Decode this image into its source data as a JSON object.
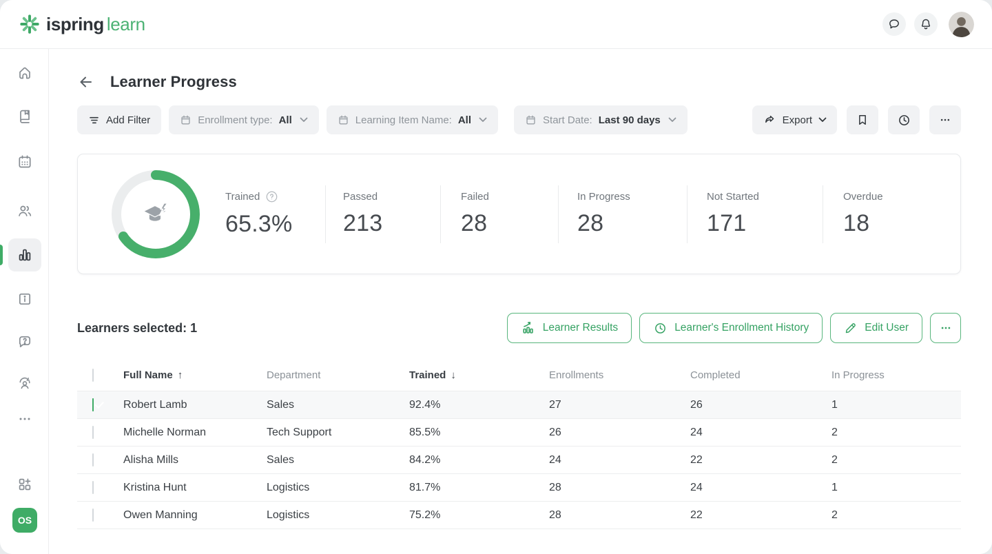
{
  "brand": {
    "name_primary": "ispring",
    "name_secondary": "learn",
    "accent": "#3fac66"
  },
  "topbar": {
    "icons": [
      "chat-icon",
      "bell-icon"
    ],
    "avatar": "user-photo"
  },
  "sidebar": {
    "items": [
      {
        "icon": "home-icon"
      },
      {
        "icon": "book-icon"
      },
      {
        "icon": "calendar-icon"
      },
      {
        "icon": "users-icon"
      },
      {
        "icon": "bar-chart-icon",
        "active": true
      },
      {
        "icon": "info-board-icon"
      },
      {
        "icon": "help-chat-icon"
      },
      {
        "icon": "support-agent-icon"
      },
      {
        "icon": "more-dots-icon"
      },
      {
        "icon": "apps-plus-icon"
      }
    ],
    "workspace_badge": "OS"
  },
  "header": {
    "title": "Learner Progress",
    "back_icon": "arrow-left-icon"
  },
  "filters": {
    "add_filter_label": "Add Filter",
    "chips": [
      {
        "label": "Enrollment type:",
        "value": "All"
      },
      {
        "label": "Learning Item Name:",
        "value": "All"
      },
      {
        "label": "Start Date:",
        "value": "Last 90 days"
      }
    ],
    "export_label": "Export",
    "tool_icons": [
      "bookmark-icon",
      "history-clock-icon",
      "ellipsis-icon"
    ]
  },
  "summary": {
    "donut_percent": 65.3,
    "donut_color": "#47af6b",
    "donut_track_color": "#ebedee",
    "stats": [
      {
        "label": "Trained",
        "value": "65.3%",
        "has_help": true
      },
      {
        "label": "Passed",
        "value": "213"
      },
      {
        "label": "Failed",
        "value": "28"
      },
      {
        "label": "In Progress",
        "value": "28"
      },
      {
        "label": "Not Started",
        "value": "171"
      },
      {
        "label": "Overdue",
        "value": "18"
      }
    ]
  },
  "selection": {
    "label": "Learners selected: 1",
    "buttons": [
      {
        "label": "Learner Results",
        "icon": "results-chart-icon"
      },
      {
        "label": "Learner's Enrollment History",
        "icon": "clock-icon"
      },
      {
        "label": "Edit User",
        "icon": "pencil-icon"
      }
    ],
    "more_label": "•••"
  },
  "table": {
    "columns": [
      {
        "label": "Full Name",
        "arrow": "↑",
        "sorted": true
      },
      {
        "label": "Department",
        "arrow": "",
        "sorted": false
      },
      {
        "label": "Trained",
        "arrow": "↓",
        "sorted": true
      },
      {
        "label": "Enrollments",
        "arrow": "",
        "sorted": false
      },
      {
        "label": "Completed",
        "arrow": "",
        "sorted": false
      },
      {
        "label": "In Progress",
        "arrow": "",
        "sorted": false
      }
    ],
    "rows": [
      {
        "name": "Robert Lamb",
        "department": "Sales",
        "trained": "92.4%",
        "enrollments": "27",
        "completed": "26",
        "in_progress": "1",
        "selected": true
      },
      {
        "name": "Michelle Norman",
        "department": "Tech Support",
        "trained": "85.5%",
        "enrollments": "26",
        "completed": "24",
        "in_progress": "2",
        "selected": false
      },
      {
        "name": "Alisha Mills",
        "department": "Sales",
        "trained": "84.2%",
        "enrollments": "24",
        "completed": "22",
        "in_progress": "2",
        "selected": false
      },
      {
        "name": "Kristina Hunt",
        "department": "Logistics",
        "trained": "81.7%",
        "enrollments": "28",
        "completed": "24",
        "in_progress": "1",
        "selected": false
      },
      {
        "name": "Owen Manning",
        "department": "Logistics",
        "trained": "75.2%",
        "enrollments": "28",
        "completed": "22",
        "in_progress": "2",
        "selected": false
      }
    ]
  }
}
